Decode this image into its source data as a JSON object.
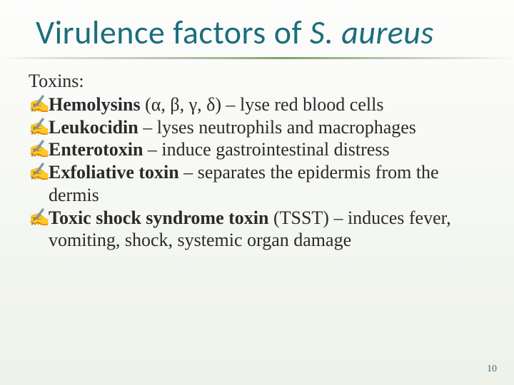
{
  "slide": {
    "title_prefix": "Virulence factors of ",
    "title_italic": "S. aureus",
    "subheading": "Toxins:",
    "bullet_glyph": "✍",
    "items": [
      {
        "term": "Hemolysins",
        "rest": " (α, β, γ, δ) – lyse red blood cells"
      },
      {
        "term": "Leukocidin",
        "rest": " – lyses neutrophils and macrophages"
      },
      {
        "term": "Enterotoxin",
        "rest": " – induce gastrointestinal distress"
      },
      {
        "term": "Exfoliative toxin",
        "rest": " – separates the epidermis from the dermis"
      },
      {
        "term": "Toxic shock syndrome toxin",
        "rest": " (TSST) – induces fever, vomiting, shock, systemic organ damage"
      }
    ],
    "page_number": "10",
    "colors": {
      "title": "#1b6e7c",
      "bullet": "#7aa04a",
      "text": "#2a2a2a",
      "pagenum": "#3c6e7a"
    }
  }
}
